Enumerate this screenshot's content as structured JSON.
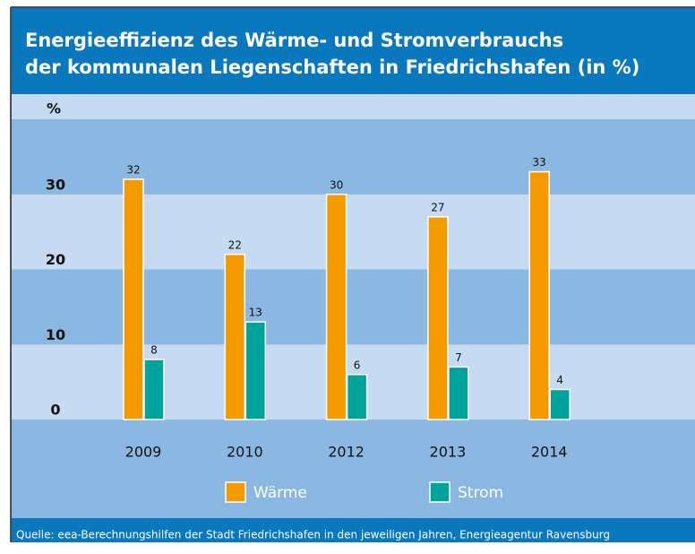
{
  "chart_data": {
    "type": "bar",
    "title_lines": [
      "Energieeffizienz des Wärme- und Stromverbrauchs",
      "der kommunalen Liegenschaften in Friedrichshafen (in %)"
    ],
    "y_label": "%",
    "categories": [
      "2009",
      "2010",
      "2012",
      "2013",
      "2014"
    ],
    "series": [
      {
        "name": "Wärme",
        "color": "#f39a00",
        "values": [
          32,
          22,
          30,
          27,
          33
        ]
      },
      {
        "name": "Strom",
        "color": "#00a39b",
        "values": [
          8,
          13,
          6,
          7,
          4
        ]
      }
    ],
    "ylim": [
      0,
      40
    ],
    "yticks": [
      0,
      10,
      20,
      30
    ],
    "source": "Quelle: eea-Berechnungshilfen der Stadt Friedrichshafen in den jeweiligen Jahren, Energieagentur Ravensburg"
  }
}
